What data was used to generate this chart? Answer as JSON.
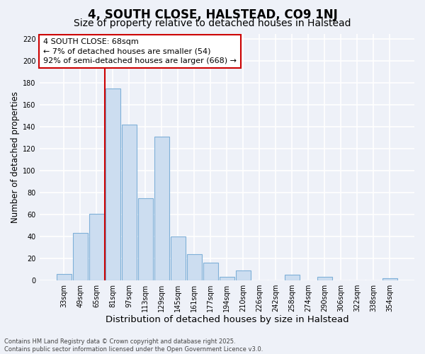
{
  "title": "4, SOUTH CLOSE, HALSTEAD, CO9 1NJ",
  "subtitle": "Size of property relative to detached houses in Halstead",
  "xlabel": "Distribution of detached houses by size in Halstead",
  "ylabel": "Number of detached properties",
  "bar_labels": [
    "33sqm",
    "49sqm",
    "65sqm",
    "81sqm",
    "97sqm",
    "113sqm",
    "129sqm",
    "145sqm",
    "161sqm",
    "177sqm",
    "194sqm",
    "210sqm",
    "226sqm",
    "242sqm",
    "258sqm",
    "274sqm",
    "290sqm",
    "306sqm",
    "322sqm",
    "338sqm",
    "354sqm"
  ],
  "bar_values": [
    6,
    43,
    61,
    175,
    142,
    75,
    131,
    40,
    24,
    16,
    3,
    9,
    0,
    0,
    5,
    0,
    3,
    0,
    0,
    0,
    2
  ],
  "bar_color": "#ccddf0",
  "bar_edge_color": "#7fb0d8",
  "property_line_color": "#cc0000",
  "annotation_line1": "4 SOUTH CLOSE: 68sqm",
  "annotation_line2": "← 7% of detached houses are smaller (54)",
  "annotation_line3": "92% of semi-detached houses are larger (668) →",
  "annotation_box_color": "#ffffff",
  "annotation_box_edge": "#cc0000",
  "ylim": [
    0,
    225
  ],
  "yticks": [
    0,
    20,
    40,
    60,
    80,
    100,
    120,
    140,
    160,
    180,
    200,
    220
  ],
  "background_color": "#eef1f8",
  "grid_color": "#ffffff",
  "footer_line1": "Contains HM Land Registry data © Crown copyright and database right 2025.",
  "footer_line2": "Contains public sector information licensed under the Open Government Licence v3.0.",
  "title_fontsize": 12,
  "subtitle_fontsize": 10,
  "xlabel_fontsize": 9.5,
  "ylabel_fontsize": 8.5,
  "tick_fontsize": 7,
  "annotation_fontsize": 8,
  "footer_fontsize": 6
}
